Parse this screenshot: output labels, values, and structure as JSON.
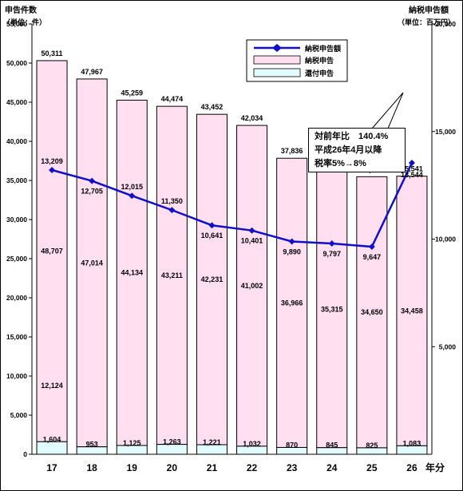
{
  "left_axis": {
    "title_line1": "申告件数",
    "title_line2": "（単位：件）",
    "ticks": [
      "0",
      "5,000",
      "10,000",
      "15,000",
      "20,000",
      "25,000",
      "30,000",
      "35,000",
      "40,000",
      "45,000",
      "50,000",
      "55,000"
    ]
  },
  "right_axis": {
    "title_line1": "納税申告額",
    "title_line2": "（単位：百万円）",
    "ticks": [
      "5,000",
      "10,000",
      "15,000",
      "20,000"
    ]
  },
  "x_axis": {
    "unit_label": "年分"
  },
  "legend": {
    "line_label": "納税申告額",
    "pink_label": "納税申告",
    "cyan_label": "還付申告"
  },
  "callout": {
    "line1": "対前年比　140.4%",
    "line2": "平成26年4月以降",
    "line3": "税率5%→8%"
  },
  "colors": {
    "pink_fill": "#ffdff0",
    "cyan_fill": "#e2fbff",
    "line": "#1010c8"
  },
  "chart_data": {
    "type": "bar",
    "categories": [
      "17",
      "18",
      "19",
      "20",
      "21",
      "22",
      "23",
      "24",
      "25",
      "26"
    ],
    "series": [
      {
        "name": "納税申告",
        "values": [
          48707,
          47014,
          44134,
          43211,
          42231,
          41002,
          36966,
          35315,
          34650,
          34458
        ]
      },
      {
        "name": "還付申告",
        "values": [
          1604,
          953,
          1125,
          1263,
          1221,
          1032,
          870,
          845,
          825,
          1083
        ]
      }
    ],
    "totals": [
      50311,
      47967,
      45259,
      44474,
      43452,
      42034,
      37836,
      36160,
      35475,
      35541
    ],
    "totals_labels": [
      "50,311",
      "47,967",
      "45,259",
      "44,474",
      "43,452",
      "42,034",
      "37,836",
      "36,160",
      "35,475",
      "35,541"
    ],
    "pink_labels": [
      "48,707",
      "47,014",
      "44,134",
      "43,211",
      "42,231",
      "41,002",
      "36,966",
      "35,315",
      "34,650",
      "34,458"
    ],
    "cyan_labels": [
      "1,604",
      "953",
      "1,125",
      "1,263",
      "1,221",
      "1,032",
      "870",
      "845",
      "825",
      "1,083"
    ],
    "line_series": {
      "name": "納税申告額",
      "values": [
        13209,
        12705,
        12015,
        11350,
        10641,
        10401,
        9890,
        9797,
        9647,
        13544
      ],
      "labels": [
        "13,209",
        "12,705",
        "12,015",
        "11,350",
        "10,641",
        "10,401",
        "9,890",
        "9,797",
        "9,647",
        "13,544"
      ]
    },
    "stray_label": "12,124",
    "ylim_left": [
      0,
      55000
    ],
    "ylim_right": [
      0,
      20000
    ]
  }
}
